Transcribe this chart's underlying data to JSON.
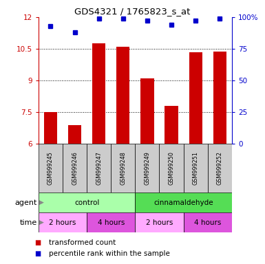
{
  "title": "GDS4321 / 1765823_s_at",
  "samples": [
    "GSM999245",
    "GSM999246",
    "GSM999247",
    "GSM999248",
    "GSM999249",
    "GSM999250",
    "GSM999251",
    "GSM999252"
  ],
  "transformed_counts": [
    7.5,
    6.9,
    10.75,
    10.6,
    9.1,
    7.8,
    10.35,
    10.38
  ],
  "percentile_ranks": [
    93,
    88,
    99,
    99,
    97,
    94,
    97,
    99
  ],
  "ylim": [
    6,
    12
  ],
  "yticks": [
    6,
    7.5,
    9,
    10.5,
    12
  ],
  "ytick_labels": [
    "6",
    "7.5",
    "9",
    "10.5",
    "12"
  ],
  "right_yticks": [
    0,
    25,
    50,
    75,
    100
  ],
  "right_ytick_labels": [
    "0",
    "25",
    "50",
    "75",
    "100%"
  ],
  "bar_color": "#cc0000",
  "dot_color": "#0000cc",
  "bar_bottom": 6,
  "agent_groups": [
    {
      "label": "control",
      "start": 0,
      "end": 4,
      "color": "#aaffaa"
    },
    {
      "label": "cinnamaldehyde",
      "start": 4,
      "end": 8,
      "color": "#55dd55"
    }
  ],
  "time_groups": [
    {
      "label": "2 hours",
      "start": 0,
      "end": 2,
      "color": "#ffaaff"
    },
    {
      "label": "4 hours",
      "start": 2,
      "end": 4,
      "color": "#dd55dd"
    },
    {
      "label": "2 hours",
      "start": 4,
      "end": 6,
      "color": "#ffaaff"
    },
    {
      "label": "4 hours",
      "start": 6,
      "end": 8,
      "color": "#dd55dd"
    }
  ],
  "legend_bar_label": "transformed count",
  "legend_dot_label": "percentile rank within the sample",
  "sample_row_color": "#cccccc"
}
